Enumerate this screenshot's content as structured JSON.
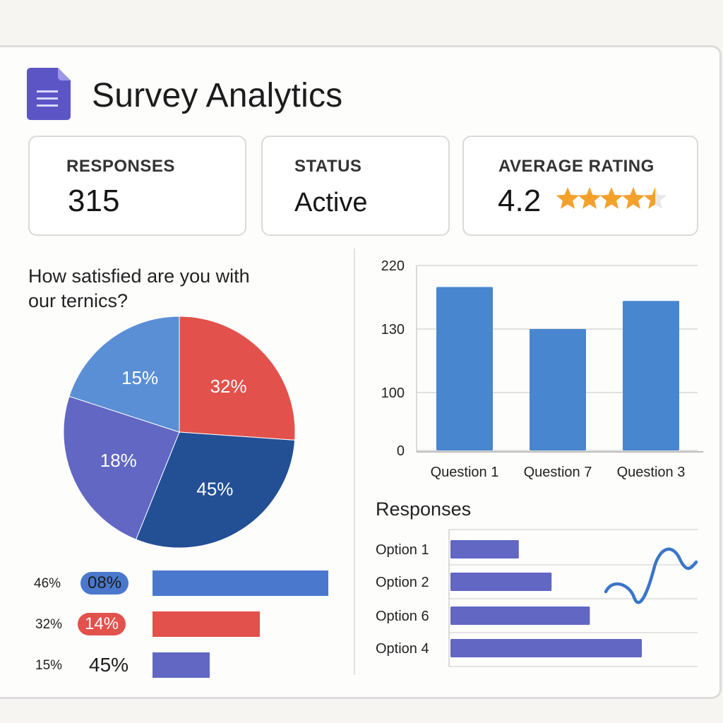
{
  "app": {
    "title": "Survey Analytics",
    "icon": "form-document-icon"
  },
  "stats": {
    "responses": {
      "label": "RESPONSES",
      "value": "315"
    },
    "status": {
      "label": "STATUS",
      "value": "Active"
    },
    "rating": {
      "label": "AVERAGE RATING",
      "value": "4.2",
      "stars": 4.5,
      "star_color": "#f4a12b"
    }
  },
  "question": {
    "text": "How satisfied are you with our ternics?"
  },
  "pie": {
    "chart_data": {
      "type": "pie",
      "slices": [
        {
          "label": "32%",
          "value": 32,
          "color": "#e2514b"
        },
        {
          "label": "45%",
          "value": 45,
          "color": "#234f95"
        },
        {
          "label": "18%",
          "value": 18,
          "color": "#6167c3"
        },
        {
          "label": "15%",
          "value": 15,
          "color": "#5a8fd6"
        }
      ]
    }
  },
  "pie_legend": [
    {
      "left": "46%",
      "pill": "08%",
      "pill_color": "#4a78cc",
      "mid": "",
      "bar_value": 46,
      "bar_color": "#4a78cc"
    },
    {
      "left": "32%",
      "pill": "14%",
      "pill_color": "#e2514b",
      "mid": "",
      "bar_value": 28,
      "bar_color": "#e2514b"
    },
    {
      "left": "15%",
      "pill": "",
      "pill_color": "",
      "mid": "45%",
      "bar_value": 15,
      "bar_color": "#6167c3"
    }
  ],
  "bar_chart": {
    "chart_data": {
      "type": "bar",
      "categories": [
        "Question 1",
        "Question 7",
        "Question 3"
      ],
      "values": [
        175,
        130,
        160
      ],
      "yticks": [
        "220",
        "130",
        "100",
        "0"
      ],
      "color": "#4886d0",
      "grid": true
    }
  },
  "responses_chart": {
    "title": "Responses",
    "chart_data": {
      "type": "bar",
      "orientation": "horizontal",
      "categories": [
        "Option 1",
        "Option 2",
        "Option 6",
        "Option 4"
      ],
      "values": [
        25,
        37,
        51,
        70
      ],
      "color": "#6167c3",
      "grid": true
    },
    "sparkline_color": "#3b76c8"
  }
}
